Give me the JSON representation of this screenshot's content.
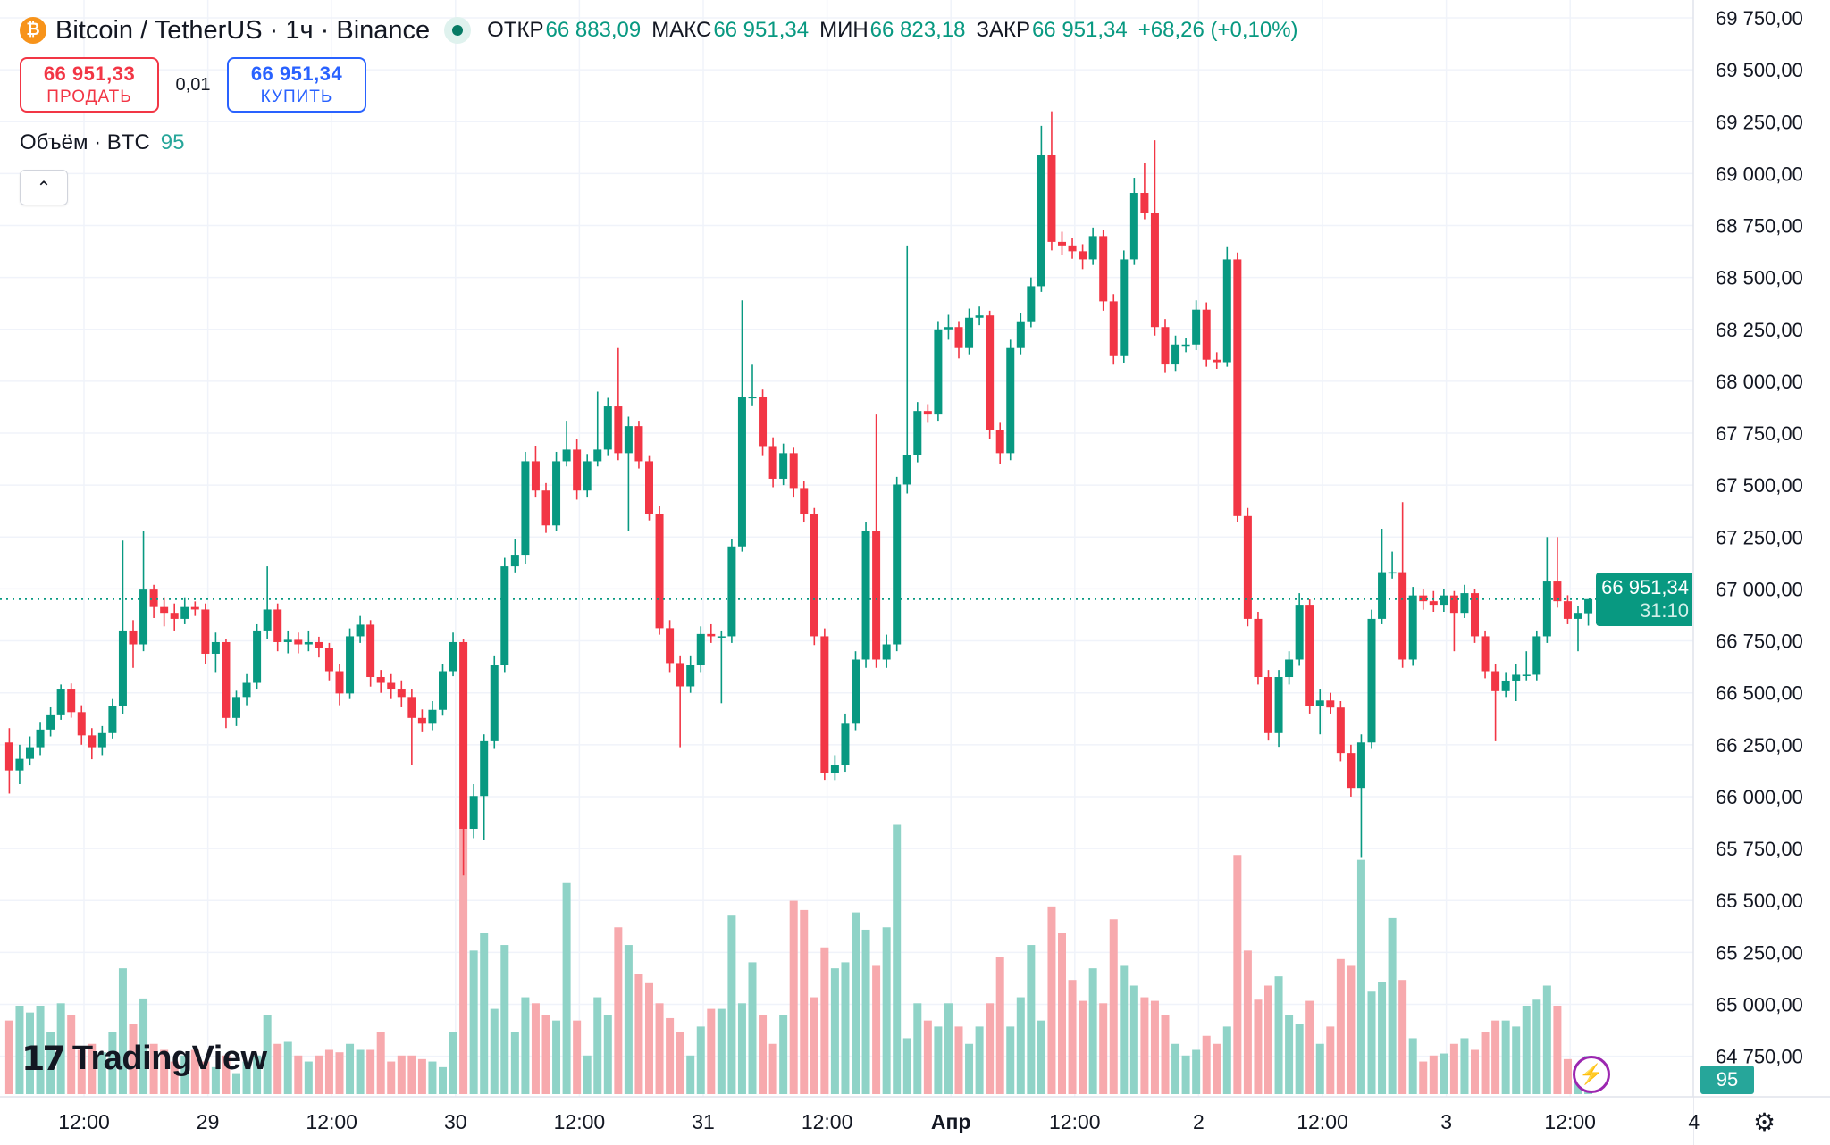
{
  "header": {
    "symbol_icon": "bitcoin-icon",
    "title": "Bitcoin / TetherUS · 1ч · Binance",
    "market_status": "open",
    "open_label": "ОТКР",
    "open_value": "66 883,09",
    "high_label": "МАКС",
    "high_value": "66 951,34",
    "low_label": "МИН",
    "low_value": "66 823,18",
    "close_label": "ЗАКР",
    "close_value": "66 951,34",
    "change": "+68,26 (+0,10%)"
  },
  "trade": {
    "sell_price": "66 951,33",
    "sell_label": "ПРОДАТЬ",
    "spread": "0,01",
    "buy_price": "66 951,34",
    "buy_label": "КУПИТЬ"
  },
  "volume_legend": {
    "label": "Объём · BTC",
    "value": "95"
  },
  "collapse_icon": "chevron-up-icon",
  "logo": {
    "mark": "17",
    "text": "TradingView"
  },
  "current_price": {
    "price": "66 951,34",
    "countdown": "31:10"
  },
  "volume_badge": "95",
  "colors": {
    "up": "#089981",
    "down": "#f23645",
    "volume_up": "#8fd3c7",
    "volume_down": "#f7a9ad",
    "sell": "#f23645",
    "buy": "#2962ff"
  },
  "chart_data": {
    "type": "candlestick",
    "interval": "1ч",
    "ylim": [
      64750,
      69750
    ],
    "y_ticks": [
      "69 750,00",
      "69 500,00",
      "69 250,00",
      "69 000,00",
      "68 750,00",
      "68 500,00",
      "68 250,00",
      "68 000,00",
      "67 750,00",
      "67 500,00",
      "67 250,00",
      "67 000,00",
      "66 750,00",
      "66 500,00",
      "66 250,00",
      "66 000,00",
      "65 750,00",
      "65 500,00",
      "65 250,00",
      "65 000,00",
      "64 750,00"
    ],
    "x_ticks": [
      "12:00",
      "29",
      "12:00",
      "30",
      "12:00",
      "31",
      "12:00",
      "Апр",
      "12:00",
      "2",
      "12:00",
      "3",
      "12:00",
      "4"
    ],
    "grid": true,
    "last_price": 66951.34,
    "candle_fields": [
      "time",
      "open",
      "high",
      "low",
      "close",
      "volume"
    ],
    "candles": [
      [
        "28 05:00",
        66261,
        66330,
        66015,
        66126,
        183
      ],
      [
        "28 06:00",
        66126,
        66250,
        66060,
        66182,
        220
      ],
      [
        "28 07:00",
        66182,
        66290,
        66150,
        66238,
        203
      ],
      [
        "28 08:00",
        66238,
        66360,
        66200,
        66323,
        220
      ],
      [
        "28 09:00",
        66323,
        66430,
        66290,
        66396,
        154
      ],
      [
        "28 10:00",
        66396,
        66540,
        66370,
        66520,
        226
      ],
      [
        "28 11:00",
        66520,
        66545,
        66380,
        66407,
        197
      ],
      [
        "28 12:00",
        66407,
        66440,
        66250,
        66295,
        110
      ],
      [
        "28 13:00",
        66295,
        66330,
        66180,
        66238,
        125
      ],
      [
        "28 14:00",
        66238,
        66340,
        66200,
        66306,
        104
      ],
      [
        "28 15:00",
        66306,
        66470,
        66280,
        66435,
        154
      ],
      [
        "28 16:00",
        66435,
        67233,
        66400,
        66800,
        313
      ],
      [
        "28 17:00",
        66800,
        66850,
        66620,
        66733,
        174
      ],
      [
        "28 18:00",
        66733,
        67278,
        66700,
        66997,
        238
      ],
      [
        "28 19:00",
        66997,
        67020,
        66860,
        66913,
        125
      ],
      [
        "28 20:00",
        66913,
        66960,
        66820,
        66885,
        110
      ],
      [
        "28 21:00",
        66885,
        66930,
        66800,
        66856,
        81
      ],
      [
        "28 22:00",
        66856,
        66960,
        66830,
        66913,
        96
      ],
      [
        "28 23:00",
        66913,
        66940,
        66870,
        66901,
        110
      ],
      [
        "29 00:00",
        66901,
        66930,
        66640,
        66688,
        81
      ],
      [
        "29 01:00",
        66688,
        66790,
        66600,
        66744,
        67
      ],
      [
        "29 02:00",
        66744,
        66760,
        66330,
        66379,
        96
      ],
      [
        "29 03:00",
        66379,
        66510,
        66340,
        66480,
        52
      ],
      [
        "29 04:00",
        66480,
        66590,
        66440,
        66548,
        81
      ],
      [
        "29 05:00",
        66548,
        66830,
        66520,
        66800,
        96
      ],
      [
        "29 06:00",
        66800,
        67109,
        66760,
        66901,
        197
      ],
      [
        "29 07:00",
        66901,
        66930,
        66700,
        66744,
        125
      ],
      [
        "29 08:00",
        66744,
        66800,
        66690,
        66755,
        130
      ],
      [
        "29 09:00",
        66755,
        66790,
        66690,
        66733,
        96
      ],
      [
        "29 10:00",
        66733,
        66800,
        66700,
        66744,
        81
      ],
      [
        "29 11:00",
        66744,
        66770,
        66670,
        66716,
        96
      ],
      [
        "29 12:00",
        66716,
        66740,
        66560,
        66604,
        110
      ],
      [
        "29 13:00",
        66604,
        66640,
        66440,
        66497,
        104
      ],
      [
        "29 14:00",
        66497,
        66810,
        66470,
        66772,
        125
      ],
      [
        "29 15:00",
        66772,
        66870,
        66740,
        66828,
        110
      ],
      [
        "29 16:00",
        66828,
        66850,
        66530,
        66576,
        110
      ],
      [
        "29 17:00",
        66576,
        66610,
        66500,
        66548,
        154
      ],
      [
        "29 18:00",
        66548,
        66590,
        66470,
        66520,
        81
      ],
      [
        "29 19:00",
        66520,
        66560,
        66430,
        66480,
        96
      ],
      [
        "29 20:00",
        66480,
        66520,
        66154,
        66379,
        96
      ],
      [
        "29 21:00",
        66379,
        66420,
        66310,
        66351,
        87
      ],
      [
        "29 22:00",
        66351,
        66460,
        66320,
        66418,
        81
      ],
      [
        "29 23:00",
        66418,
        66640,
        66390,
        66604,
        67
      ],
      [
        "30 00:00",
        66604,
        66790,
        66580,
        66744,
        154
      ],
      [
        "30 01:00",
        66744,
        66760,
        65620,
        65845,
        661
      ],
      [
        "30 02:00",
        65845,
        66060,
        65800,
        66003,
        357
      ],
      [
        "30 03:00",
        66003,
        66300,
        65790,
        66267,
        400
      ],
      [
        "30 04:00",
        66267,
        66680,
        66230,
        66632,
        212
      ],
      [
        "30 05:00",
        66632,
        67150,
        66600,
        67109,
        371
      ],
      [
        "30 06:00",
        67109,
        67240,
        67080,
        67165,
        154
      ],
      [
        "30 07:00",
        67165,
        67660,
        67120,
        67615,
        241
      ],
      [
        "30 08:00",
        67615,
        67690,
        67440,
        67474,
        226
      ],
      [
        "30 09:00",
        67474,
        67510,
        67270,
        67306,
        197
      ],
      [
        "30 10:00",
        67306,
        67660,
        67280,
        67615,
        183
      ],
      [
        "30 11:00",
        67615,
        67810,
        67590,
        67671,
        525
      ],
      [
        "30 12:00",
        67671,
        67720,
        67430,
        67474,
        183
      ],
      [
        "30 13:00",
        67474,
        67650,
        67440,
        67615,
        96
      ],
      [
        "30 14:00",
        67615,
        67950,
        67590,
        67671,
        241
      ],
      [
        "30 15:00",
        67671,
        67920,
        67640,
        67879,
        197
      ],
      [
        "30 16:00",
        67879,
        68160,
        67620,
        67654,
        415
      ],
      [
        "30 17:00",
        67654,
        67830,
        67278,
        67784,
        371
      ],
      [
        "30 18:00",
        67784,
        67810,
        67580,
        67615,
        299
      ],
      [
        "30 19:00",
        67615,
        67640,
        67330,
        67362,
        276
      ],
      [
        "30 20:00",
        67362,
        67400,
        66780,
        66811,
        226
      ],
      [
        "30 21:00",
        66811,
        66850,
        66600,
        66643,
        189
      ],
      [
        "30 22:00",
        66643,
        66680,
        66238,
        66531,
        154
      ],
      [
        "30 23:00",
        66531,
        66680,
        66500,
        66632,
        96
      ],
      [
        "31 00:00",
        66632,
        66820,
        66600,
        66783,
        168
      ],
      [
        "31 01:00",
        66783,
        66830,
        66740,
        66772,
        212
      ],
      [
        "31 02:00",
        66772,
        66800,
        66450,
        66772,
        212
      ],
      [
        "31 03:00",
        66772,
        67240,
        66740,
        67205,
        444
      ],
      [
        "31 04:00",
        67205,
        68390,
        67180,
        67924,
        226
      ],
      [
        "31 05:00",
        67924,
        68080,
        67880,
        67924,
        328
      ],
      [
        "31 06:00",
        67924,
        67960,
        67640,
        67688,
        197
      ],
      [
        "31 07:00",
        67688,
        67730,
        67490,
        67531,
        125
      ],
      [
        "31 08:00",
        67531,
        67700,
        67500,
        67654,
        197
      ],
      [
        "31 09:00",
        67654,
        67680,
        67440,
        67486,
        481
      ],
      [
        "31 10:00",
        67486,
        67520,
        67320,
        67362,
        458
      ],
      [
        "31 11:00",
        67362,
        67390,
        66730,
        66772,
        241
      ],
      [
        "31 12:00",
        66772,
        66810,
        66081,
        66115,
        365
      ],
      [
        "31 13:00",
        66115,
        66200,
        66080,
        66154,
        313
      ],
      [
        "31 14:00",
        66154,
        66400,
        66120,
        66351,
        328
      ],
      [
        "31 15:00",
        66351,
        66700,
        66320,
        66660,
        452
      ],
      [
        "31 16:00",
        66660,
        67320,
        66620,
        67278,
        409
      ],
      [
        "31 17:00",
        67278,
        67840,
        66620,
        66660,
        319
      ],
      [
        "31 18:00",
        66660,
        66780,
        66620,
        66733,
        415
      ],
      [
        "31 19:00",
        66733,
        67540,
        66700,
        67503,
        670
      ],
      [
        "31 20:00",
        67503,
        68654,
        67460,
        67643,
        139
      ],
      [
        "31 21:00",
        67643,
        67900,
        67610,
        67857,
        226
      ],
      [
        "31 22:00",
        67857,
        67890,
        67800,
        67840,
        183
      ],
      [
        "31 23:00",
        67840,
        68290,
        67810,
        68250,
        168
      ],
      [
        "01 00:00",
        68250,
        68320,
        68200,
        68261,
        226
      ],
      [
        "01 01:00",
        68261,
        68290,
        68110,
        68160,
        168
      ],
      [
        "01 02:00",
        68160,
        68350,
        68130,
        68306,
        125
      ],
      [
        "01 03:00",
        68306,
        68360,
        68270,
        68317,
        168
      ],
      [
        "01 04:00",
        68317,
        68340,
        67720,
        67767,
        226
      ],
      [
        "01 05:00",
        67767,
        67800,
        67600,
        67654,
        342
      ],
      [
        "01 06:00",
        67654,
        68200,
        67620,
        68160,
        168
      ],
      [
        "01 07:00",
        68160,
        68330,
        68130,
        68289,
        241
      ],
      [
        "01 08:00",
        68289,
        68500,
        68260,
        68458,
        371
      ],
      [
        "01 09:00",
        68458,
        69230,
        68430,
        69092,
        183
      ],
      [
        "01 10:00",
        69092,
        69300,
        68630,
        68671,
        467
      ],
      [
        "01 11:00",
        68671,
        68720,
        68610,
        68654,
        400
      ],
      [
        "01 12:00",
        68654,
        68690,
        68590,
        68626,
        284
      ],
      [
        "01 13:00",
        68626,
        68660,
        68540,
        68587,
        232
      ],
      [
        "01 14:00",
        68587,
        68740,
        68560,
        68699,
        313
      ],
      [
        "01 15:00",
        68699,
        68730,
        68340,
        68385,
        226
      ],
      [
        "01 16:00",
        68385,
        68420,
        68080,
        68121,
        435
      ],
      [
        "01 17:00",
        68121,
        68630,
        68090,
        68587,
        319
      ],
      [
        "01 18:00",
        68587,
        68980,
        68560,
        68907,
        270
      ],
      [
        "01 19:00",
        68907,
        69050,
        68780,
        68812,
        241
      ],
      [
        "01 20:00",
        68812,
        69160,
        68220,
        68261,
        232
      ],
      [
        "01 21:00",
        68261,
        68300,
        68040,
        68081,
        197
      ],
      [
        "01 22:00",
        68081,
        68220,
        68050,
        68177,
        125
      ],
      [
        "01 23:00",
        68177,
        68210,
        68140,
        68177,
        96
      ],
      [
        "02 00:00",
        68177,
        68390,
        68150,
        68345,
        110
      ],
      [
        "02 01:00",
        68345,
        68380,
        68070,
        68104,
        145
      ],
      [
        "02 02:00",
        68104,
        68140,
        68060,
        68092,
        125
      ],
      [
        "02 03:00",
        68092,
        68650,
        68070,
        68587,
        168
      ],
      [
        "02 04:00",
        68587,
        68620,
        67320,
        67351,
        595
      ],
      [
        "02 05:00",
        67351,
        67390,
        66820,
        66856,
        357
      ],
      [
        "02 06:00",
        66856,
        66890,
        66540,
        66576,
        235
      ],
      [
        "02 07:00",
        66576,
        66610,
        66270,
        66306,
        270
      ],
      [
        "02 08:00",
        66306,
        66610,
        66240,
        66576,
        293
      ],
      [
        "02 09:00",
        66576,
        66700,
        66540,
        66660,
        197
      ],
      [
        "02 10:00",
        66660,
        66980,
        66630,
        66924,
        174
      ],
      [
        "02 11:00",
        66924,
        66950,
        66400,
        66435,
        232
      ],
      [
        "02 12:00",
        66435,
        66520,
        66300,
        66463,
        125
      ],
      [
        "02 13:00",
        66463,
        66500,
        66400,
        66429,
        168
      ],
      [
        "02 14:00",
        66429,
        66460,
        66170,
        66210,
        336
      ],
      [
        "02 15:00",
        66210,
        66250,
        66000,
        66042,
        319
      ],
      [
        "02 16:00",
        66042,
        66300,
        65705,
        66261,
        583
      ],
      [
        "02 17:00",
        66261,
        66900,
        66230,
        66856,
        255
      ],
      [
        "02 18:00",
        66856,
        67290,
        66830,
        67081,
        279
      ],
      [
        "02 19:00",
        67081,
        67180,
        67050,
        67081,
        438
      ],
      [
        "02 20:00",
        67081,
        67418,
        66620,
        66660,
        284
      ],
      [
        "02 21:00",
        66660,
        67010,
        66630,
        66969,
        139
      ],
      [
        "02 22:00",
        66969,
        67000,
        66900,
        66941,
        81
      ],
      [
        "02 23:00",
        66941,
        66990,
        66890,
        66924,
        96
      ],
      [
        "03 00:00",
        66924,
        67000,
        66890,
        66969,
        101
      ],
      [
        "03 01:00",
        66969,
        66990,
        66700,
        66885,
        125
      ],
      [
        "03 02:00",
        66885,
        67020,
        66860,
        66980,
        139
      ],
      [
        "03 03:00",
        66980,
        67000,
        66740,
        66772,
        110
      ],
      [
        "03 04:00",
        66772,
        66800,
        66570,
        66604,
        154
      ],
      [
        "03 05:00",
        66604,
        66640,
        66267,
        66508,
        183
      ],
      [
        "03 06:00",
        66508,
        66600,
        66480,
        66559,
        183
      ],
      [
        "03 07:00",
        66559,
        66640,
        66460,
        66587,
        168
      ],
      [
        "03 08:00",
        66587,
        66700,
        66560,
        66587,
        220
      ],
      [
        "03 09:00",
        66587,
        66800,
        66560,
        66772,
        235
      ],
      [
        "03 10:00",
        66772,
        67250,
        66740,
        67036,
        270
      ],
      [
        "03 11:00",
        67036,
        67250,
        66910,
        66941,
        220
      ],
      [
        "03 12:00",
        66941,
        66970,
        66830,
        66856,
        87
      ],
      [
        "03 13:00",
        66856,
        66920,
        66700,
        66885,
        38
      ],
      [
        "03 14:00",
        66883.09,
        66951.34,
        66823.18,
        66951.34,
        95
      ]
    ]
  }
}
